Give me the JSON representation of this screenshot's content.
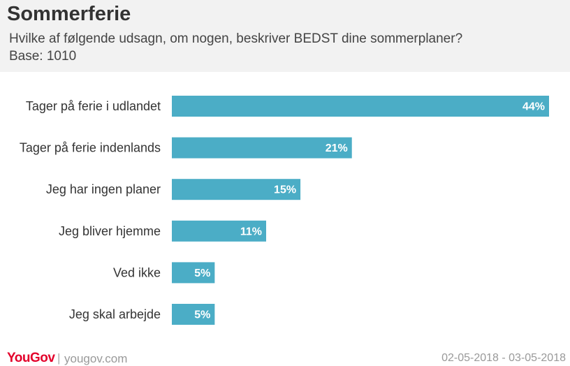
{
  "header": {
    "title": "Sommerferie",
    "subtitle": "Hvilke af følgende udsagn, om nogen, beskriver BEDST dine sommerplaner?",
    "base": "Base: 1010"
  },
  "chart_data": {
    "type": "bar",
    "orientation": "horizontal",
    "categories": [
      "Tager på ferie i udlandet",
      "Tager på ferie indenlands",
      "Jeg har ingen planer",
      "Jeg bliver hjemme",
      "Ved ikke",
      "Jeg skal arbejde"
    ],
    "values": [
      44,
      21,
      15,
      11,
      5,
      5
    ],
    "value_labels": [
      "44%",
      "21%",
      "15%",
      "11%",
      "5%",
      "5%"
    ],
    "unit": "%",
    "bar_color": "#4badc6",
    "label_color": "#ffffff",
    "grid": false,
    "legend": "none"
  },
  "footer": {
    "brand": "YouGov",
    "separator": "|",
    "url": "yougov.com",
    "date_range": "02-05-2018 - 03-05-2018",
    "brand_color": "#e3002b"
  }
}
